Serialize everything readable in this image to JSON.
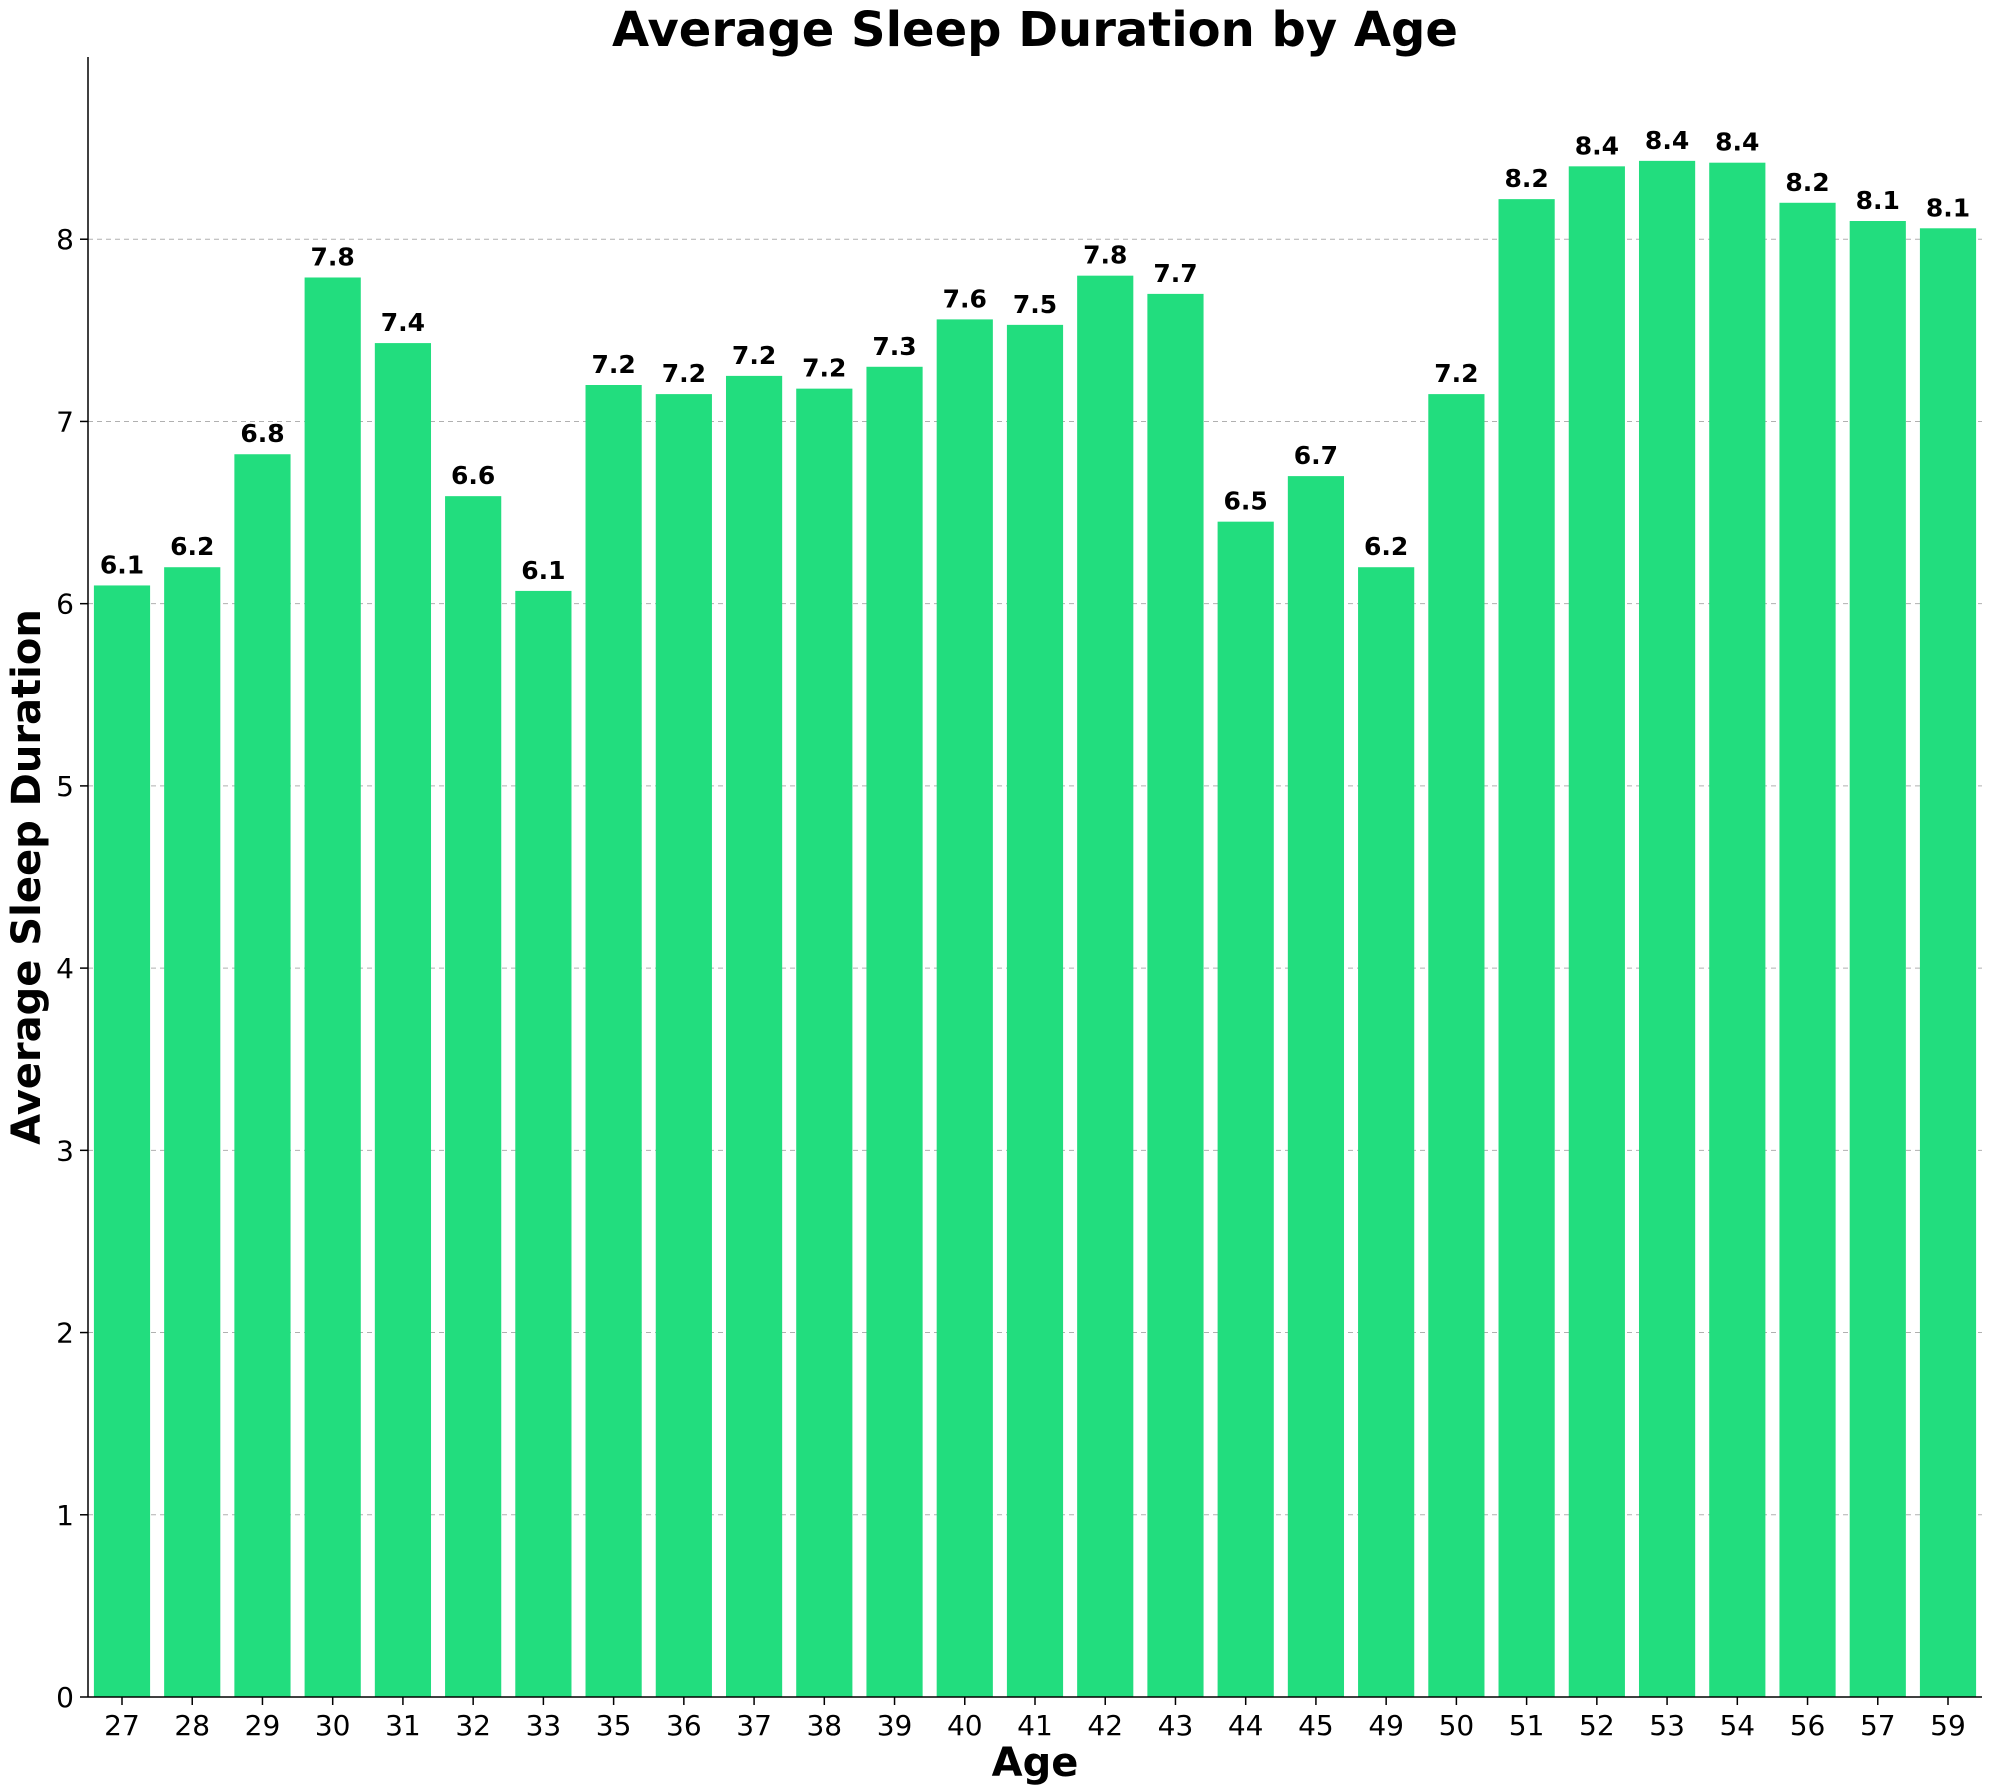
{
  "chart_data": {
    "type": "bar",
    "title": "Average Sleep Duration by Age",
    "xlabel": "Age",
    "ylabel": "Average Sleep Duration",
    "categories": [
      "27",
      "28",
      "29",
      "30",
      "31",
      "32",
      "33",
      "35",
      "36",
      "37",
      "38",
      "39",
      "40",
      "41",
      "42",
      "43",
      "44",
      "45",
      "49",
      "50",
      "51",
      "52",
      "53",
      "54",
      "56",
      "57",
      "59"
    ],
    "values": [
      6.1,
      6.2,
      6.82,
      7.79,
      7.43,
      6.59,
      6.07,
      7.2,
      7.15,
      7.25,
      7.18,
      7.3,
      7.56,
      7.53,
      7.8,
      7.7,
      6.45,
      6.7,
      6.2,
      7.15,
      8.22,
      8.4,
      8.43,
      8.42,
      8.2,
      8.1,
      8.06
    ],
    "data_labels": [
      "6.1",
      "6.2",
      "6.8",
      "7.8",
      "7.4",
      "6.6",
      "6.1",
      "7.2",
      "7.2",
      "7.2",
      "7.2",
      "7.3",
      "7.6",
      "7.5",
      "7.8",
      "7.7",
      "6.5",
      "6.7",
      "6.2",
      "7.2",
      "8.2",
      "8.4",
      "8.4",
      "8.4",
      "8.2",
      "8.1",
      "8.1"
    ],
    "yticks": [
      0,
      1,
      2,
      3,
      4,
      5,
      6,
      7,
      8
    ],
    "ylim": [
      0,
      9
    ],
    "grid": "horizontal-dashed",
    "bar_color": "#22dd7e"
  }
}
